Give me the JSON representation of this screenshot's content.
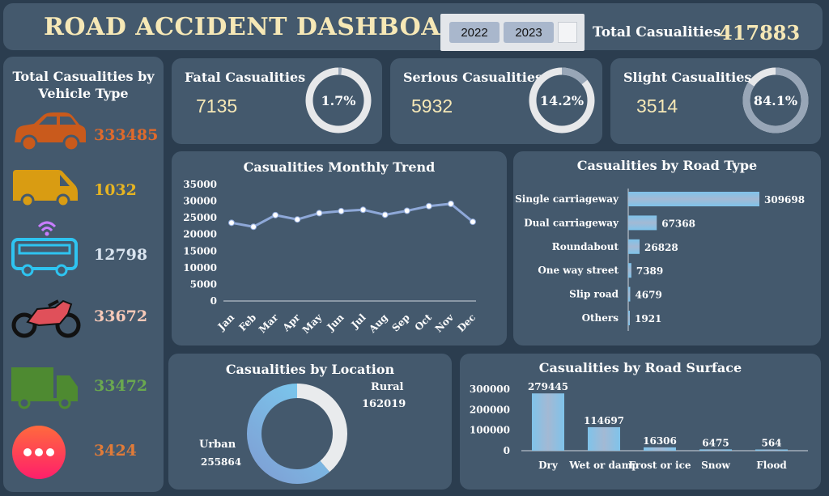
{
  "header": {
    "title": "ROAD ACCIDENT DASHBOARD",
    "slicer": [
      "2022",
      "2023"
    ],
    "total_label": "Total Casualities",
    "total_value": "417883"
  },
  "vehicle_panel": {
    "title_line1": "Total Casualities by",
    "title_line2": "Vehicle Type",
    "items": [
      {
        "icon": "car-icon",
        "value": "333485",
        "color": "#e06a2b"
      },
      {
        "icon": "van-icon",
        "value": "1032",
        "color": "#e6b422"
      },
      {
        "icon": "bus-icon",
        "value": "12798",
        "color": "#d9e4ef"
      },
      {
        "icon": "motorbike-icon",
        "value": "33672",
        "color": "#f7c9b8"
      },
      {
        "icon": "truck-icon",
        "value": "33472",
        "color": "#6aa84f"
      },
      {
        "icon": "others-icon",
        "value": "3424",
        "color": "#e07b39"
      }
    ]
  },
  "kpis": [
    {
      "label": "Fatal Casualities",
      "value": "7135",
      "pct_label": "1.7%",
      "pct": 1.7
    },
    {
      "label": "Serious Casualities",
      "value": "5932",
      "pct_label": "14.2%",
      "pct": 14.2
    },
    {
      "label": "Slight Casualities",
      "value": "3514",
      "pct_label": "84.1%",
      "pct": 84.1
    }
  ],
  "chart_data": [
    {
      "type": "line",
      "title": "Casualities Monthly Trend",
      "categories": [
        "Jan",
        "Feb",
        "Mar",
        "Apr",
        "May",
        "Jun",
        "Jul",
        "Aug",
        "Sep",
        "Oct",
        "Nov",
        "Dec"
      ],
      "values": [
        23500,
        22300,
        25800,
        24500,
        26400,
        27000,
        27400,
        25900,
        27100,
        28500,
        29200,
        23800
      ],
      "yticks": [
        "35000",
        "30000",
        "25000",
        "20000",
        "15000",
        "10000",
        "5000",
        "0"
      ],
      "ylim": [
        0,
        35000
      ]
    },
    {
      "type": "bar",
      "title": "Casualities by Road Type",
      "categories": [
        "Single carriageway",
        "Dual carriageway",
        "Roundabout",
        "One way street",
        "Slip road",
        "Others"
      ],
      "values": [
        309698,
        67368,
        26828,
        7389,
        4679,
        1921
      ],
      "value_labels": [
        "309698",
        "67368",
        "26828",
        "7389",
        "4679",
        "1921"
      ]
    },
    {
      "type": "pie",
      "title": "Casualities by Location",
      "categories": [
        "Rural",
        "Urban"
      ],
      "values": [
        162019,
        255864
      ],
      "value_labels": [
        "162019",
        "255864"
      ]
    },
    {
      "type": "bar",
      "title": "Casualities by Road Surface",
      "categories": [
        "Dry",
        "Wet or damp",
        "Frost or ice",
        "Snow",
        "Flood"
      ],
      "values": [
        279445,
        114697,
        16306,
        6475,
        564
      ],
      "value_labels": [
        "279445",
        "114697",
        "16306",
        "6475",
        "564"
      ],
      "yticks": [
        "300000",
        "200000",
        "100000",
        "0"
      ],
      "ylim": [
        0,
        300000
      ]
    }
  ]
}
